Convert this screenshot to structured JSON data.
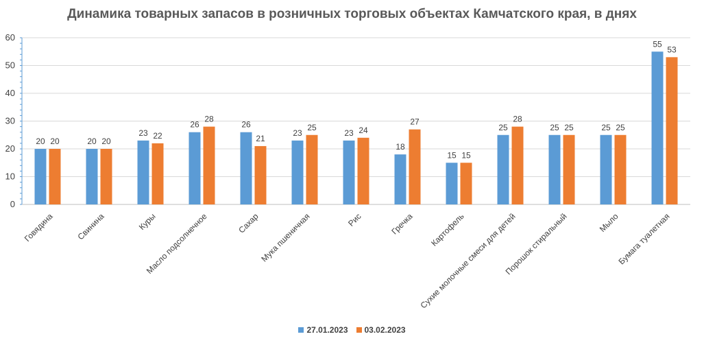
{
  "chart_data": {
    "type": "bar",
    "title": "Динамика товарных запасов в розничных торговых объектах Камчатского края, в днях",
    "xlabel": "",
    "ylabel": "",
    "ylim": [
      0,
      60
    ],
    "yticks": [
      0,
      10,
      20,
      30,
      40,
      50,
      60
    ],
    "grid": true,
    "legend_position": "bottom",
    "categories": [
      "Говядина",
      "Свинина",
      "Куры",
      "Масло подсолнечное",
      "Сахар",
      "Мука пшеничная",
      "Рис",
      "Гречка",
      "Картофель",
      "Сухие молочные смеси для детей",
      "Порошок стиральный",
      "Мыло",
      "Бумага туалетная"
    ],
    "series": [
      {
        "name": "27.01.2023",
        "color": "#5B9BD5",
        "values": [
          20,
          20,
          23,
          26,
          26,
          23,
          23,
          18,
          15,
          25,
          25,
          25,
          55
        ]
      },
      {
        "name": "03.02.2023",
        "color": "#ED7D31",
        "values": [
          20,
          20,
          22,
          28,
          21,
          25,
          24,
          27,
          15,
          28,
          25,
          25,
          53
        ]
      }
    ]
  }
}
